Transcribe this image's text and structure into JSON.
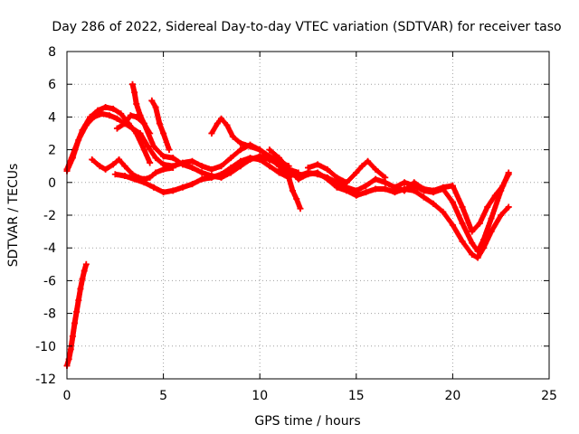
{
  "chart_data": {
    "type": "scatter",
    "title": "Day 286 of 2022, Sidereal Day-to-day VTEC variation (SDTVAR) for receiver taso",
    "xlabel": "GPS time / hours",
    "ylabel": "SDTVAR / TECUs",
    "xlim": [
      0,
      25
    ],
    "ylim": [
      -12,
      8
    ],
    "xticks": [
      0,
      5,
      10,
      15,
      20,
      25
    ],
    "yticks": [
      -12,
      -10,
      -8,
      -6,
      -4,
      -2,
      0,
      2,
      4,
      6,
      8
    ],
    "grid": true,
    "marker": "+",
    "color": "#ff0000",
    "series": [
      {
        "name": "track-1",
        "x": [
          0,
          0.3,
          0.6,
          1.0,
          1.4,
          1.8,
          2.2,
          2.6,
          3.0,
          3.4,
          3.8,
          4.2,
          4.6,
          5.0,
          5.5,
          6.0,
          6.5,
          7.0,
          7.5,
          8.0,
          8.5,
          9.0,
          9.5,
          10.0,
          10.5,
          11.0,
          11.5,
          12.0
        ],
        "y": [
          0.7,
          1.5,
          2.6,
          3.5,
          4.0,
          4.2,
          4.1,
          3.9,
          3.6,
          3.3,
          3.0,
          2.2,
          1.5,
          1.1,
          1.0,
          1.2,
          1.3,
          1.0,
          0.8,
          1.0,
          1.5,
          2.0,
          2.3,
          2.0,
          1.5,
          1.0,
          0.7,
          0.5
        ]
      },
      {
        "name": "track-2",
        "x": [
          0,
          0.4,
          0.8,
          1.2,
          1.6,
          2.0,
          2.4,
          2.8,
          3.2,
          3.6,
          4.0,
          4.3
        ],
        "y": [
          0.8,
          2.0,
          3.2,
          4.0,
          4.4,
          4.6,
          4.5,
          4.2,
          3.6,
          3.0,
          2.0,
          1.2
        ]
      },
      {
        "name": "track-3",
        "x": [
          1.3,
          1.7,
          2.0,
          2.4,
          2.7,
          3.0,
          3.4,
          3.7,
          4.0,
          4.3,
          4.6,
          5.0,
          5.5
        ],
        "y": [
          1.4,
          1.0,
          0.8,
          1.1,
          1.4,
          1.0,
          0.5,
          0.3,
          0.2,
          0.3,
          0.6,
          0.8,
          0.9
        ]
      },
      {
        "name": "track-4",
        "x": [
          2.5,
          3.0,
          3.5,
          4.0,
          4.5,
          5.0,
          5.5,
          6.0,
          6.5,
          7.0,
          7.5,
          8.0,
          8.5,
          9.0,
          9.5,
          10.0,
          10.5,
          11.0,
          11.5
        ],
        "y": [
          0.5,
          0.4,
          0.2,
          0.0,
          -0.3,
          -0.6,
          -0.5,
          -0.3,
          -0.1,
          0.2,
          0.3,
          0.5,
          0.9,
          1.3,
          1.5,
          1.4,
          1.0,
          0.6,
          0.3
        ]
      },
      {
        "name": "track-5",
        "x": [
          3.4,
          3.5,
          3.6,
          3.8,
          4.0,
          4.3
        ],
        "y": [
          6.0,
          5.5,
          4.8,
          4.1,
          3.6,
          3.0
        ]
      },
      {
        "name": "track-6",
        "x": [
          2.6,
          3.0,
          3.3,
          3.6,
          4.0,
          4.5,
          5.0,
          5.5,
          6.0,
          6.5,
          7.0,
          7.5,
          8.0,
          8.5,
          9.0,
          9.5,
          10.0,
          10.5,
          11.0,
          11.5,
          12.0
        ],
        "y": [
          3.3,
          3.6,
          4.1,
          4.0,
          3.6,
          2.2,
          1.6,
          1.5,
          1.1,
          0.9,
          0.6,
          0.4,
          0.3,
          0.6,
          1.0,
          1.4,
          1.6,
          1.4,
          1.1,
          0.8,
          0.6
        ]
      },
      {
        "name": "track-7",
        "x": [
          4.4,
          4.6,
          4.8,
          5.0,
          5.3
        ],
        "y": [
          5.0,
          4.6,
          3.6,
          3.0,
          2.0
        ]
      },
      {
        "name": "track-8",
        "x": [
          7.5,
          7.8,
          8.0,
          8.3,
          8.6,
          9.0,
          9.5,
          10.0,
          10.5,
          11.0,
          11.5
        ],
        "y": [
          3.0,
          3.6,
          3.9,
          3.5,
          2.8,
          2.4,
          2.2,
          2.0,
          1.6,
          1.3,
          1.0
        ]
      },
      {
        "name": "track-9",
        "x": [
          11.0,
          11.5,
          12.0,
          12.5,
          13.0,
          13.5,
          14.0,
          14.5,
          15.0,
          15.5,
          16.0,
          16.5,
          17.0,
          17.5,
          18.0,
          18.5,
          19.0,
          19.5,
          20.0,
          20.5,
          21.0,
          21.3,
          21.6,
          22.0,
          22.5,
          22.9
        ],
        "y": [
          0.8,
          0.5,
          0.4,
          0.6,
          0.5,
          0.3,
          0.0,
          -0.3,
          -0.5,
          -0.2,
          0.2,
          0.0,
          -0.3,
          0.0,
          -0.2,
          -0.5,
          -0.6,
          -0.4,
          -1.2,
          -2.5,
          -3.7,
          -4.2,
          -3.5,
          -2.2,
          -0.5,
          0.6
        ]
      },
      {
        "name": "track-10",
        "x": [
          10.5,
          11.0,
          11.5,
          12.0,
          12.5,
          13.0,
          13.5,
          14.0,
          14.5,
          15.0,
          15.5,
          16.0,
          16.5,
          17.0,
          17.5,
          18.0,
          18.5,
          19.0,
          19.5,
          20.0,
          20.5,
          21.0,
          21.3,
          21.6,
          22.0,
          22.5,
          22.9
        ],
        "y": [
          2.0,
          1.5,
          0.8,
          0.2,
          0.5,
          0.6,
          0.2,
          -0.3,
          -0.5,
          -0.8,
          -0.6,
          -0.4,
          -0.4,
          -0.6,
          -0.4,
          -0.5,
          -0.9,
          -1.3,
          -1.8,
          -2.6,
          -3.6,
          -4.4,
          -4.6,
          -4.0,
          -3.0,
          -2.0,
          -1.5
        ]
      },
      {
        "name": "track-11",
        "x": [
          12.5,
          13.0,
          13.5,
          14.0,
          14.5,
          15.0,
          15.3,
          15.6,
          16.0,
          16.5
        ],
        "y": [
          0.9,
          1.1,
          0.8,
          0.3,
          0.0,
          0.6,
          1.0,
          1.3,
          0.8,
          0.3
        ]
      },
      {
        "name": "track-12",
        "x": [
          16.5,
          17.0,
          17.5,
          18.0,
          18.5,
          19.0,
          19.5,
          20.0,
          20.5,
          21.0,
          21.4,
          21.8,
          22.2,
          22.6,
          22.9
        ],
        "y": [
          0.0,
          -0.3,
          -0.5,
          0.0,
          -0.4,
          -0.5,
          -0.3,
          -0.2,
          -1.5,
          -3.0,
          -2.5,
          -1.5,
          -0.8,
          -0.2,
          0.5
        ]
      },
      {
        "name": "track-13",
        "x": [
          11.5,
          11.7,
          11.9,
          12.1
        ],
        "y": [
          0.3,
          -0.5,
          -1.0,
          -1.6
        ]
      },
      {
        "name": "track-14",
        "x": [
          0.0,
          0.1,
          0.2,
          0.3,
          0.4,
          0.5,
          0.6,
          0.7,
          0.8,
          0.9,
          1.0
        ],
        "y": [
          -11.2,
          -10.8,
          -10.2,
          -9.4,
          -8.6,
          -7.9,
          -7.2,
          -6.5,
          -5.9,
          -5.4,
          -5.0
        ]
      }
    ]
  }
}
